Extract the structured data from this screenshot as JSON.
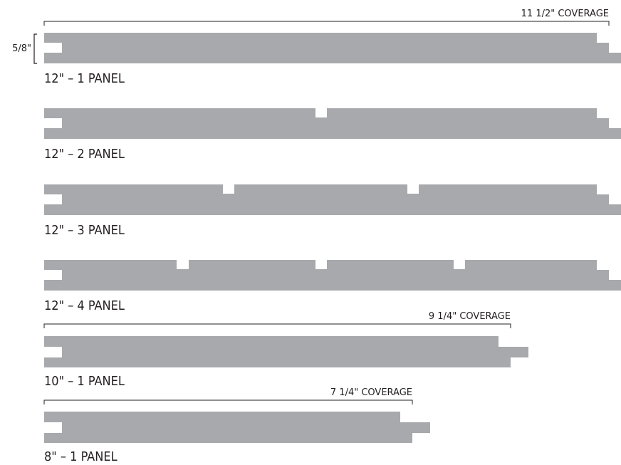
{
  "colors": {
    "panel_fill": "#a7a9ac",
    "line": "#231f20",
    "background": "#ffffff"
  },
  "thickness_label": "5/8\"",
  "panels": [
    {
      "label": "12\" – 1 PANEL",
      "coverage": "11 1/2\" COVERAGE",
      "grooves": 0
    },
    {
      "label": "12\" – 2 PANEL",
      "grooves": 1
    },
    {
      "label": "12\" – 3 PANEL",
      "grooves": 2
    },
    {
      "label": "12\" – 4 PANEL",
      "grooves": 3
    },
    {
      "label": "10\" – 1 PANEL",
      "coverage": "9 1/4\" COVERAGE",
      "grooves": 0
    },
    {
      "label": "8\" – 1 PANEL",
      "coverage": "7 1/4\" COVERAGE",
      "grooves": 0
    }
  ]
}
